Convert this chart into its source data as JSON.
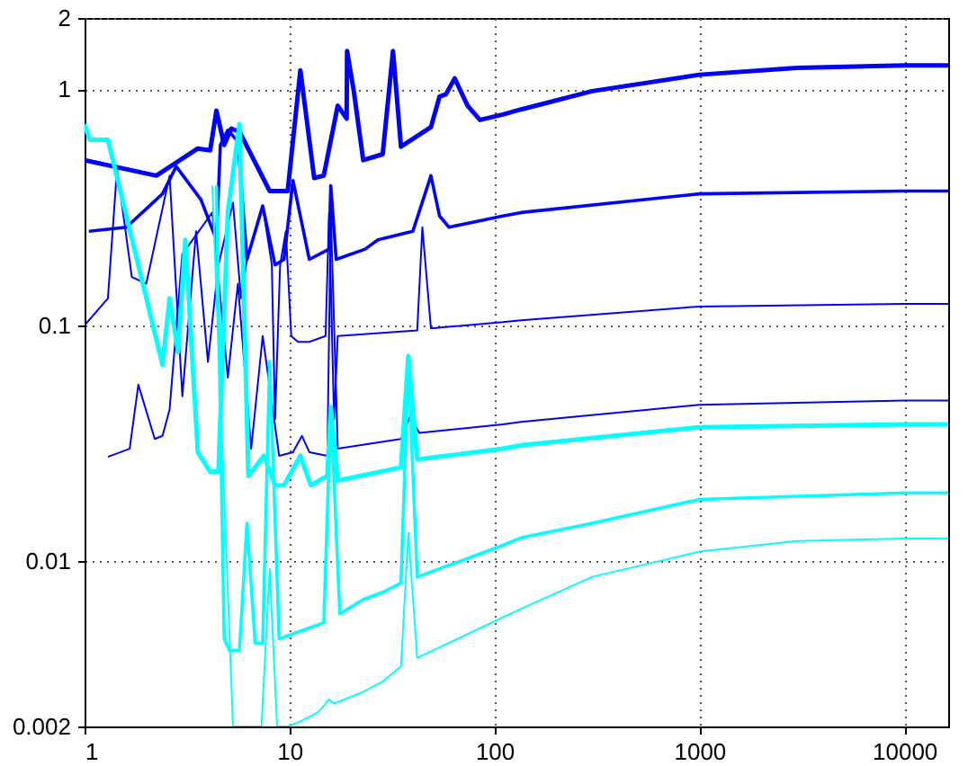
{
  "chart_data": {
    "type": "line",
    "log": "xy",
    "grid": true,
    "marker": "none",
    "line_style": "solid",
    "xlim": [
      1,
      16384
    ],
    "ylim": [
      0.002,
      2
    ],
    "xticks": [
      1,
      10,
      100,
      1000,
      10000
    ],
    "yticks": [
      0.002,
      0.01,
      0.1,
      1,
      2
    ],
    "series": [
      {
        "color": "#0000ff",
        "x": [
          1,
          2.24,
          3.57,
          4.1,
          4.4,
          4.8,
          5.2,
          5.7,
          8,
          9.8,
          11.3,
          13.2,
          14.7,
          17.2,
          19,
          19.1,
          20.6,
          22.9,
          28.5,
          32,
          35,
          49,
          54,
          58,
          64,
          74,
          85,
          110,
          135,
          300,
          1000,
          3000,
          10000,
          16384
        ],
        "values": [
          0.5,
          0.43,
          0.56,
          0.55,
          0.81,
          0.58,
          0.68,
          0.66,
          0.37,
          0.37,
          1.2,
          0.42,
          0.43,
          0.85,
          0.75,
          1.45,
          0.98,
          0.5,
          0.53,
          1.45,
          0.57,
          0.69,
          0.93,
          0.95,
          1.11,
          0.85,
          0.74,
          0.78,
          0.82,
          0.98,
          1.15,
          1.23,
          1.26,
          1.26
        ]
      },
      {
        "color": "#0000ff",
        "x": [
          1.05,
          1.6,
          2.4,
          2.8,
          3.7,
          4.4,
          4.6,
          5,
          5.6,
          6.2,
          7.4,
          8.5,
          9.4,
          10.4,
          12.5,
          15.6,
          15.9,
          16.9,
          23.4,
          27,
          40,
          49,
          54,
          60,
          110,
          135,
          1000,
          10000,
          16384
        ],
        "values": [
          0.25,
          0.26,
          0.36,
          0.47,
          0.34,
          0.23,
          0.58,
          0.67,
          0.6,
          0.19,
          0.32,
          0.18,
          0.19,
          0.41,
          0.19,
          0.21,
          0.39,
          0.19,
          0.21,
          0.23,
          0.25,
          0.43,
          0.29,
          0.26,
          0.29,
          0.3,
          0.36,
          0.37,
          0.37
        ]
      },
      {
        "color": "#0000ff",
        "x": [
          1,
          1.3,
          1.44,
          1.7,
          2,
          2.6,
          3,
          3.5,
          4,
          4.5,
          5.3,
          5.8,
          6.2,
          7.4,
          8.2,
          8.5,
          9,
          9.6,
          10.2,
          11,
          12.5,
          15,
          15.6,
          16.5,
          17.2,
          42,
          44.5,
          49,
          110,
          135,
          1000,
          10000,
          16384
        ],
        "values": [
          0.1,
          0.13,
          0.46,
          0.16,
          0.15,
          0.43,
          0.05,
          0.25,
          0.07,
          0.18,
          0.33,
          0.13,
          0.19,
          0.32,
          0.18,
          0.04,
          0.18,
          0.25,
          0.09,
          0.085,
          0.085,
          0.09,
          0.3,
          0.04,
          0.09,
          0.095,
          0.26,
          0.097,
          0.103,
          0.105,
          0.12,
          0.123,
          0.123
        ]
      },
      {
        "color": "#0000ff",
        "x": [
          1.3,
          1.66,
          1.83,
          2.2,
          2.4,
          2.6,
          3,
          4.2,
          5,
          5.6,
          6.5,
          7.4,
          8.9,
          10.4,
          11.5,
          12.5,
          15.3,
          15.9,
          17.2,
          35,
          38.7,
          43,
          110,
          135,
          1000,
          10000,
          16384
        ],
        "values": [
          0.0277,
          0.03,
          0.056,
          0.033,
          0.034,
          0.044,
          0.2,
          0.3,
          0.06,
          0.15,
          0.03,
          0.09,
          0.028,
          0.029,
          0.034,
          0.029,
          0.028,
          0.3,
          0.03,
          0.033,
          0.041,
          0.035,
          0.038,
          0.039,
          0.046,
          0.048,
          0.048
        ]
      },
      {
        "color": "#00ffff",
        "x": [
          1,
          1.06,
          1.3,
          2.4,
          2.6,
          2.86,
          3.1,
          3.57,
          4.1,
          4.5,
          5,
          5.7,
          6.3,
          7.5,
          8.5,
          9.4,
          11.3,
          12.7,
          15.3,
          15.9,
          17.2,
          35,
          38,
          42,
          110,
          135,
          1000,
          10000,
          16384
        ],
        "values": [
          0.71,
          0.61,
          0.61,
          0.068,
          0.13,
          0.077,
          0.23,
          0.029,
          0.024,
          0.024,
          0.3,
          0.71,
          0.023,
          0.028,
          0.021,
          0.021,
          0.028,
          0.021,
          0.023,
          0.045,
          0.022,
          0.025,
          0.074,
          0.027,
          0.03,
          0.031,
          0.037,
          0.038,
          0.038
        ]
      },
      {
        "color": "#00ffff",
        "x": [
          4.4,
          4.8,
          5.1,
          5.7,
          6.2,
          6.8,
          7.4,
          8,
          8.9,
          14.7,
          15.9,
          17.6,
          22.9,
          28.5,
          35,
          38,
          42,
          110,
          135,
          300,
          1000,
          10000,
          16384
        ],
        "values": [
          0.39,
          0.0047,
          0.0042,
          0.0042,
          0.0145,
          0.0045,
          0.0045,
          0.07,
          0.0047,
          0.0055,
          0.045,
          0.006,
          0.0069,
          0.0074,
          0.0081,
          0.07,
          0.0086,
          0.0117,
          0.0126,
          0.0145,
          0.0183,
          0.0195,
          0.0195
        ]
      },
      {
        "color": "#00ffff",
        "x": [
          4.2,
          5.3,
          7.3,
          8,
          8.7,
          9.8,
          11.3,
          13.8,
          15.6,
          16.5,
          22.9,
          28.5,
          35,
          38,
          42,
          110,
          135,
          300,
          1000,
          3000,
          10000,
          16384
        ],
        "values": [
          0.39,
          0.002,
          0.002,
          0.0093,
          0.002,
          0.002,
          0.0021,
          0.0023,
          0.0026,
          0.0025,
          0.0028,
          0.0031,
          0.0036,
          0.0132,
          0.0039,
          0.0058,
          0.0063,
          0.0086,
          0.011,
          0.0122,
          0.0125,
          0.0125
        ]
      }
    ]
  }
}
